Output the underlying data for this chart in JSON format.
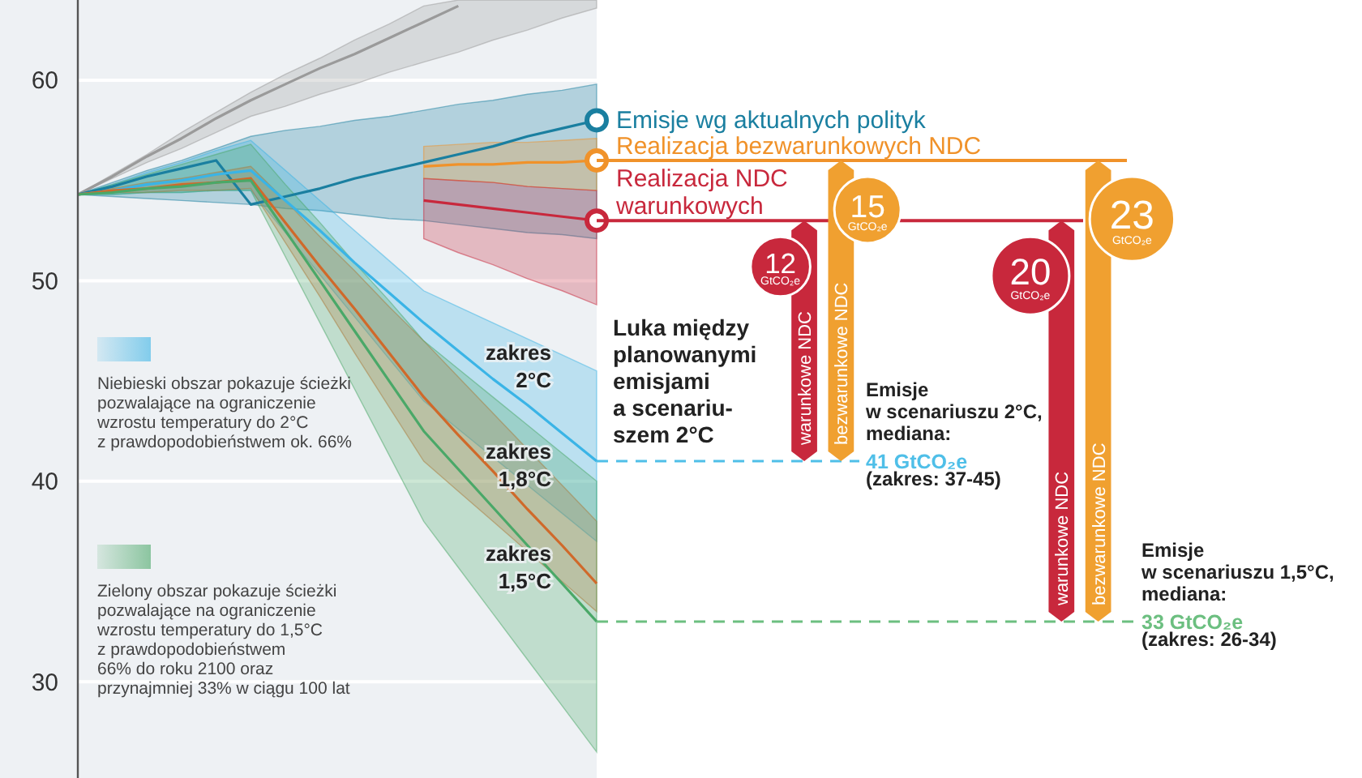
{
  "chart_data": [
    {
      "type": "line",
      "categories": [
        null,
        null,
        null,
        null,
        null,
        null,
        null,
        null,
        null,
        null,
        null,
        null,
        null,
        null,
        null,
        null
      ],
      "ylim": [
        25.2,
        64
      ],
      "yticks": [
        30,
        40,
        50,
        60
      ],
      "grid": "y",
      "tick_labels": "y",
      "series": [
        {
          "color": "#9a9a9a",
          "values": [
            54.3,
            55.2,
            56.2,
            57.1,
            58.1,
            59.0,
            59.8,
            60.6,
            61.3,
            62.1,
            62.9,
            63.7,
            null,
            null,
            null,
            null
          ],
          "lower": [
            54.3,
            55.1,
            55.9,
            56.6,
            57.4,
            58.2,
            58.7,
            59.3,
            59.8,
            60.4,
            60.9,
            61.4,
            62.0,
            62.5,
            63.1,
            63.6
          ],
          "upper": [
            54.3,
            55.3,
            56.3,
            57.4,
            58.4,
            59.4,
            60.3,
            61.1,
            62.0,
            62.8,
            63.7,
            64,
            64,
            64,
            64,
            64
          ]
        },
        {
          "name": "Emisje wg aktualnych polityk",
          "color": "#1a7fa0",
          "values": [
            54.3,
            54.7,
            55.2,
            55.6,
            56.0,
            53.8,
            54.2,
            54.6,
            55.1,
            55.5,
            55.9,
            56.3,
            56.7,
            57.2,
            57.6,
            58.0
          ],
          "lower": [
            54.3,
            54.2,
            54.1,
            54.0,
            53.9,
            53.8,
            53.6,
            53.5,
            53.3,
            53.1,
            53.0,
            52.8,
            52.6,
            52.4,
            52.3,
            52.1
          ],
          "upper": [
            54.3,
            54.9,
            55.5,
            56.0,
            56.6,
            57.2,
            57.5,
            57.7,
            58.0,
            58.2,
            58.5,
            58.8,
            59.0,
            59.3,
            59.5,
            59.8
          ]
        },
        {
          "name": "Realizacja bezwarunkowych NDC",
          "color": "#f0922a",
          "values": [
            null,
            null,
            null,
            null,
            null,
            null,
            null,
            null,
            null,
            null,
            55.7,
            55.8,
            55.8,
            55.9,
            55.9,
            56.0
          ],
          "lower": [
            null,
            null,
            null,
            null,
            null,
            null,
            null,
            null,
            null,
            null,
            55.1,
            55.0,
            54.9,
            54.7,
            54.6,
            54.5
          ],
          "upper": [
            null,
            null,
            null,
            null,
            null,
            null,
            null,
            null,
            null,
            null,
            56.7,
            56.8,
            56.9,
            56.9,
            57.0,
            57.1
          ]
        },
        {
          "name": "Realizacja NDC warunkowych",
          "color": "#c8283c",
          "values": [
            null,
            null,
            null,
            null,
            null,
            null,
            null,
            null,
            null,
            null,
            54.0,
            53.8,
            53.6,
            53.4,
            53.2,
            53.0
          ],
          "lower": [
            null,
            null,
            null,
            null,
            null,
            null,
            null,
            null,
            null,
            null,
            52.1,
            51.4,
            50.8,
            50.1,
            49.5,
            48.8
          ],
          "upper": [
            null,
            null,
            null,
            null,
            null,
            null,
            null,
            null,
            null,
            null,
            55.1,
            55.0,
            54.9,
            54.7,
            54.6,
            54.5
          ]
        },
        {
          "color": "#3ab4e6",
          "values": [
            54.3,
            54.5,
            54.8,
            55.0,
            55.3,
            55.5,
            54.0,
            52.5,
            50.9,
            49.4,
            47.9,
            46.5,
            45.1,
            43.8,
            42.4,
            41.0
          ],
          "lower": [
            54.3,
            54.3,
            54.4,
            54.4,
            54.5,
            54.5,
            52.4,
            50.3,
            48.2,
            46.1,
            44.0,
            42.6,
            41.2,
            39.8,
            38.4,
            37.0
          ],
          "upper": [
            54.3,
            54.8,
            55.4,
            55.9,
            56.5,
            57.0,
            55.5,
            54.0,
            52.5,
            51.0,
            49.5,
            48.7,
            47.9,
            47.1,
            46.3,
            45.5
          ]
        },
        {
          "color": "#d0692a",
          "values": [
            54.3,
            54.5,
            54.6,
            54.8,
            54.9,
            55.1,
            52.9,
            50.7,
            48.6,
            46.4,
            44.2,
            42.3,
            40.5,
            38.6,
            36.8,
            34.9
          ],
          "lower": [
            54.3,
            54.4,
            54.4,
            54.5,
            54.5,
            54.6,
            51.9,
            49.2,
            46.4,
            43.7,
            41.0,
            39.5,
            38.0,
            36.5,
            35.0,
            33.5
          ],
          "upper": [
            54.3,
            54.6,
            54.9,
            55.1,
            55.4,
            55.7,
            54.0,
            52.2,
            50.5,
            48.7,
            47.0,
            45.2,
            43.4,
            41.6,
            39.8,
            38.0
          ]
        },
        {
          "color": "#4aa868",
          "values": [
            54.3,
            54.4,
            54.6,
            54.7,
            54.9,
            55.0,
            52.5,
            50.0,
            47.5,
            45.0,
            42.5,
            40.6,
            38.7,
            36.8,
            34.9,
            33.0
          ],
          "lower": [
            54.3,
            54.3,
            54.4,
            54.4,
            54.5,
            54.5,
            51.2,
            47.9,
            44.6,
            41.3,
            38.0,
            35.7,
            33.4,
            31.1,
            28.8,
            26.5
          ],
          "upper": [
            54.3,
            54.8,
            55.3,
            55.8,
            56.3,
            56.8,
            54.8,
            52.9,
            50.9,
            49.0,
            47.0,
            45.6,
            44.2,
            42.8,
            41.4,
            40.0
          ]
        }
      ],
      "annotations": [
        "Niebieski obszar pokazuje ścieżki\npozwalające na ograniczenie\nwzrostu temperatury do 2°C\nz prawdopodobieństwem ok. 66%",
        "Zielony obszar pokazuje ścieżki\npozwalające na ograniczenie\nwzrostu temperatury do 1,5°C\nz prawdopodobieństwem\n66% do roku 2100 oraz\nprzynajmniej 33% w ciągu 100 lat",
        "zakres\n2°C",
        "zakres\n1,8°C",
        "zakres\n1,5°C"
      ]
    },
    {
      "type": "bar",
      "ylim": [
        25.2,
        64
      ],
      "tick_labels": false,
      "categories": [
        null,
        null,
        null,
        null,
        null,
        "warunkowe NDC",
        "bezwarunkowe NDC",
        null,
        null,
        null,
        null,
        null,
        "warunkowe NDC",
        "bezwarunkowe NDC",
        null,
        null,
        null,
        null,
        null,
        null
      ],
      "values": [
        null,
        null,
        null,
        null,
        null,
        12,
        15,
        null,
        null,
        null,
        null,
        null,
        20,
        23,
        null,
        null,
        null,
        null,
        null,
        null
      ],
      "base": [
        null,
        null,
        null,
        null,
        null,
        41,
        41,
        null,
        null,
        null,
        null,
        null,
        33,
        33,
        null,
        null,
        null,
        null,
        null,
        null
      ],
      "colors": [
        null,
        null,
        null,
        null,
        null,
        "#c8283c",
        "#f0a030",
        null,
        null,
        null,
        null,
        null,
        "#c8283c",
        "#f0a030",
        null,
        null,
        null,
        null,
        null,
        null
      ],
      "value_labels": [
        null,
        null,
        null,
        null,
        null,
        "12 GtCO₂e",
        "15 GtCO₂e",
        null,
        null,
        null,
        null,
        null,
        "20 GtCO₂e",
        "23 GtCO₂e",
        null,
        null,
        null,
        null,
        null,
        null
      ],
      "ref_lines": [
        {
          "axis": "y",
          "value": 56,
          "color": "#f0922a",
          "line_style": "solid"
        },
        {
          "axis": "y",
          "value": 53,
          "color": "#c8283c",
          "line_style": "solid"
        },
        {
          "axis": "y",
          "value": 41,
          "label": "41 GtCO₂e",
          "color": "#4fbfe8",
          "line_style": "dashed"
        },
        {
          "axis": "y",
          "value": 33,
          "label": "33 GtCO₂e",
          "color": "#6cbf80",
          "line_style": "dashed"
        }
      ],
      "annotations": [
        "Luka między\nplanowanymi\nemisjami\na scenariu-\nszem 2°C",
        "Emisje\nw scenariuszu 2°C,\nmediana:",
        "(zakres: 37-45)",
        "Emisje\nw scenariuszu 1,5°C,\nmediana:",
        "(zakres: 26-34)"
      ]
    }
  ]
}
